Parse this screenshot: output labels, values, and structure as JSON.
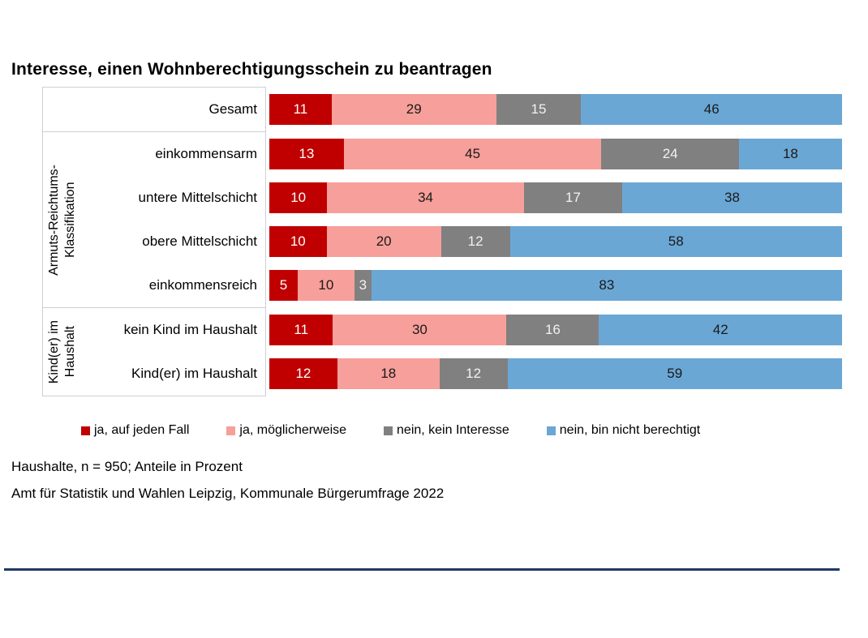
{
  "title": "Interesse, einen Wohnberechtigungsschein zu beantragen",
  "colors": {
    "rule": "#1f3864",
    "panel_border": "#cfcfcf"
  },
  "footnotes": {
    "sample": "Haushalte, n = 950; Anteile in Prozent",
    "source": "Amt für Statistik und Wahlen Leipzig, Kommunale Bürgerumfrage 2022"
  },
  "chart_data": {
    "type": "bar",
    "stacked": true,
    "orientation": "horizontal",
    "unit": "Prozent",
    "series": [
      {
        "name": "ja, auf jeden Fall",
        "color": "#c00000",
        "text_color": "#ffffff"
      },
      {
        "name": "ja, möglicherweise",
        "color": "#f79f9a",
        "text_color": "#1a1a1a"
      },
      {
        "name": "nein, kein Interesse",
        "color": "#808080",
        "text_color": "#f2f2f2"
      },
      {
        "name": "nein, bin nicht berechtigt",
        "color": "#6ba7d5",
        "text_color": "#1a1a1a"
      }
    ],
    "groups": [
      {
        "name": "",
        "rows": [
          {
            "label": "Gesamt",
            "values": [
              11,
              29,
              15,
              46
            ]
          }
        ]
      },
      {
        "name": "Armuts-Reichtums-\nKlassifikation",
        "rows": [
          {
            "label": "einkommensarm",
            "values": [
              13,
              45,
              24,
              18
            ]
          },
          {
            "label": "untere Mittelschicht",
            "values": [
              10,
              34,
              17,
              38
            ]
          },
          {
            "label": "obere Mittelschicht",
            "values": [
              10,
              20,
              12,
              58
            ]
          },
          {
            "label": "einkommensreich",
            "values": [
              5,
              10,
              3,
              83
            ]
          }
        ]
      },
      {
        "name": "Kind(er) im\nHaushalt",
        "rows": [
          {
            "label": "kein Kind im Haushalt",
            "values": [
              11,
              30,
              16,
              42
            ]
          },
          {
            "label": "Kind(er) im Haushalt",
            "values": [
              12,
              18,
              12,
              59
            ]
          }
        ]
      }
    ],
    "legend_position": "bottom",
    "grid": false
  }
}
